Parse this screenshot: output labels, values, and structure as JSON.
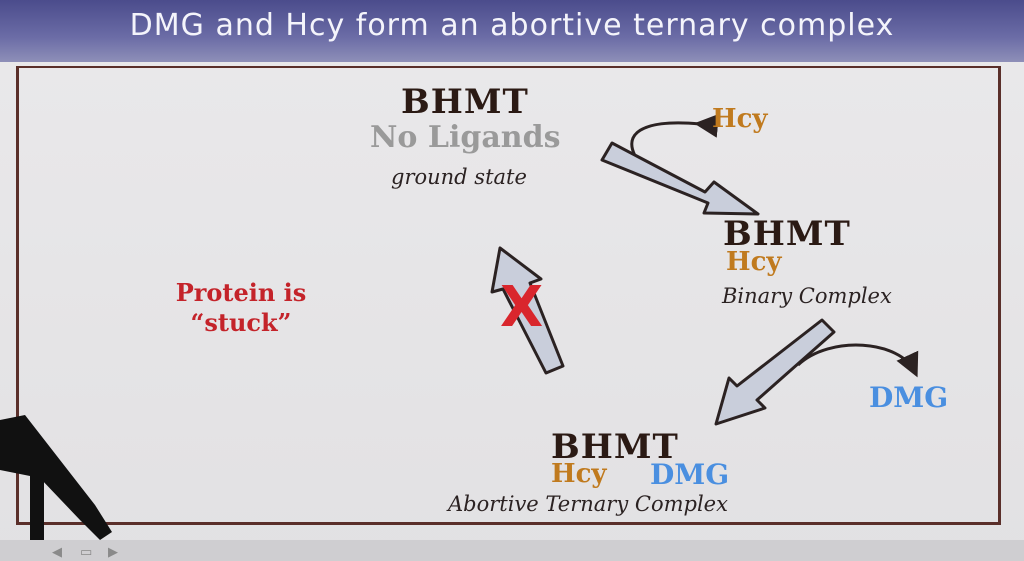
{
  "slide": {
    "title": "DMG and Hcy form an abortive ternary complex"
  },
  "diagram": {
    "top": {
      "name": "BHMT",
      "ligands": "No Ligands",
      "state": "ground state"
    },
    "hcy_input": "Hcy",
    "binary": {
      "name": "BHMT",
      "ligand": "Hcy",
      "state": "Binary Complex"
    },
    "dmg_input": "DMG",
    "ternary": {
      "name": "BHMT",
      "ligand1": "Hcy",
      "ligand2": "DMG",
      "state": "Abortive Ternary Complex"
    },
    "stuck_note": {
      "line1": "Protein is",
      "line2": "“stuck”"
    },
    "blocked_mark": "X"
  },
  "colors": {
    "title_bar": "#5a5b98",
    "frame_border": "#5a2f2a",
    "hcy": "#c07a1e",
    "dmg": "#4a8fe0",
    "stuck": "#c4232a",
    "arrow_fill": "#c9cedb"
  },
  "icons": {
    "navigation_controls": "slide-nav-icons",
    "microphone": "microphone-icon"
  }
}
